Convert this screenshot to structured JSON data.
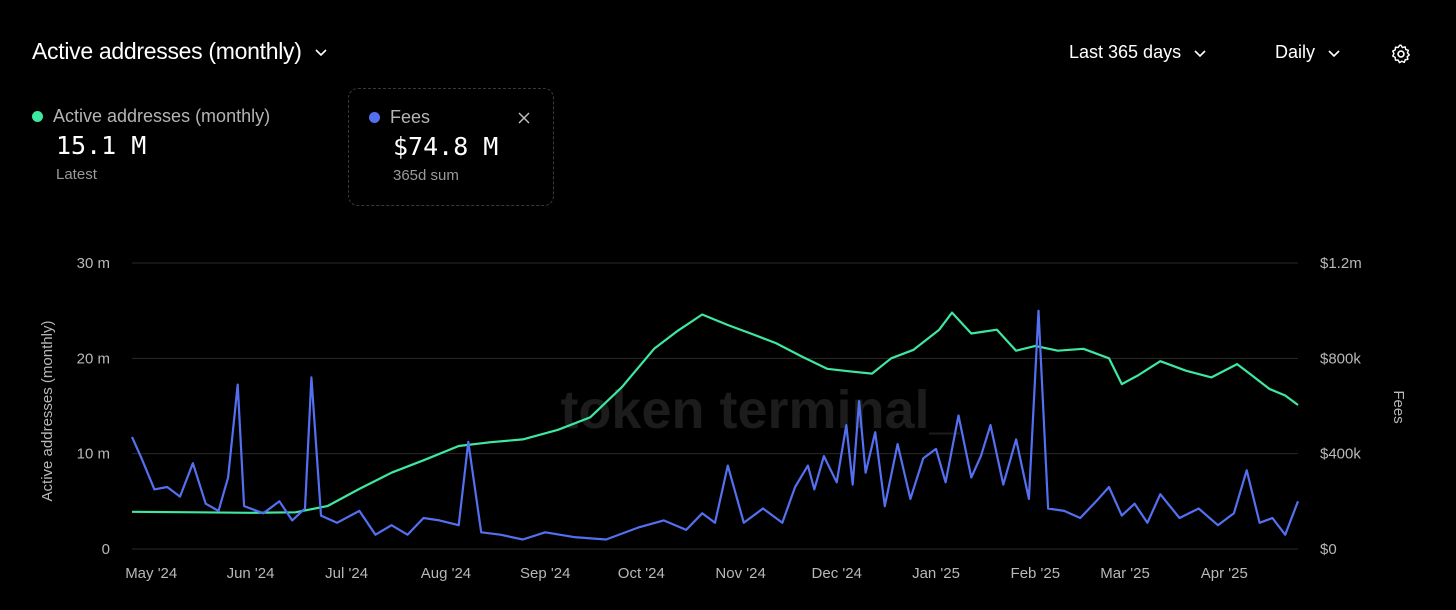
{
  "header": {
    "title": "Active addresses (monthly)",
    "range_label": "Last 365 days",
    "granularity_label": "Daily"
  },
  "metrics": [
    {
      "label": "Active addresses (monthly)",
      "value": "15.1 M",
      "sub": "Latest",
      "color": "#3ee8a0"
    },
    {
      "label": "Fees",
      "value": "$74.8 M",
      "sub": "365d sum",
      "color": "#5470f0"
    }
  ],
  "watermark": "token terminal_",
  "chart_data": {
    "type": "line",
    "x_ticks": [
      "May '24",
      "Jun '24",
      "Jul '24",
      "Aug '24",
      "Sep '24",
      "Oct '24",
      "Nov '24",
      "Dec '24",
      "Jan '25",
      "Feb '25",
      "Mar '25",
      "Apr '25"
    ],
    "x_range": [
      "2024-04-25",
      "2025-04-24"
    ],
    "y_left": {
      "label": "Active addresses (monthly)",
      "ticks": [
        "0",
        "10 m",
        "20 m",
        "30 m"
      ],
      "range": [
        0,
        30000000
      ]
    },
    "y_right": {
      "label": "Fees",
      "ticks": [
        "$0",
        "$400k",
        "$800k",
        "$1.2m"
      ],
      "range": [
        0,
        1200000
      ]
    },
    "grid": true,
    "series": [
      {
        "name": "Active addresses (monthly)",
        "axis": "left",
        "color": "#3ee8a0",
        "points": [
          [
            "2024-04-25",
            3.9
          ],
          [
            "2024-05-15",
            3.85
          ],
          [
            "2024-06-01",
            3.8
          ],
          [
            "2024-06-15",
            3.85
          ],
          [
            "2024-06-25",
            4.5
          ],
          [
            "2024-07-05",
            6.3
          ],
          [
            "2024-07-15",
            8.0
          ],
          [
            "2024-07-25",
            9.3
          ],
          [
            "2024-08-05",
            10.8
          ],
          [
            "2024-08-15",
            11.2
          ],
          [
            "2024-08-25",
            11.5
          ],
          [
            "2024-09-05",
            12.5
          ],
          [
            "2024-09-15",
            13.8
          ],
          [
            "2024-09-25",
            17.0
          ],
          [
            "2024-10-05",
            21.0
          ],
          [
            "2024-10-12",
            22.8
          ],
          [
            "2024-10-20",
            24.6
          ],
          [
            "2024-10-28",
            23.5
          ],
          [
            "2024-11-05",
            22.5
          ],
          [
            "2024-11-12",
            21.6
          ],
          [
            "2024-11-20",
            20.2
          ],
          [
            "2024-11-28",
            18.9
          ],
          [
            "2024-12-06",
            18.6
          ],
          [
            "2024-12-12",
            18.4
          ],
          [
            "2024-12-18",
            20.0
          ],
          [
            "2024-12-25",
            20.9
          ],
          [
            "2025-01-02",
            23.0
          ],
          [
            "2025-01-06",
            24.8
          ],
          [
            "2025-01-12",
            22.6
          ],
          [
            "2025-01-20",
            23.0
          ],
          [
            "2025-01-26",
            20.8
          ],
          [
            "2025-02-01",
            21.3
          ],
          [
            "2025-02-08",
            20.8
          ],
          [
            "2025-02-16",
            21.0
          ],
          [
            "2025-02-24",
            20.0
          ],
          [
            "2025-02-28",
            17.3
          ],
          [
            "2025-03-05",
            18.2
          ],
          [
            "2025-03-12",
            19.7
          ],
          [
            "2025-03-20",
            18.7
          ],
          [
            "2025-03-28",
            18.0
          ],
          [
            "2025-04-05",
            19.4
          ],
          [
            "2025-04-10",
            18.1
          ],
          [
            "2025-04-15",
            16.8
          ],
          [
            "2025-04-20",
            16.1
          ],
          [
            "2025-04-24",
            15.1
          ]
        ]
      },
      {
        "name": "Fees",
        "axis": "right",
        "color": "#5470f0",
        "points": [
          [
            "2024-04-25",
            470000
          ],
          [
            "2024-04-28",
            380000
          ],
          [
            "2024-05-02",
            250000
          ],
          [
            "2024-05-06",
            260000
          ],
          [
            "2024-05-10",
            220000
          ],
          [
            "2024-05-14",
            360000
          ],
          [
            "2024-05-18",
            190000
          ],
          [
            "2024-05-22",
            160000
          ],
          [
            "2024-05-25",
            300000
          ],
          [
            "2024-05-28",
            690000
          ],
          [
            "2024-05-30",
            180000
          ],
          [
            "2024-06-05",
            150000
          ],
          [
            "2024-06-10",
            200000
          ],
          [
            "2024-06-14",
            120000
          ],
          [
            "2024-06-18",
            170000
          ],
          [
            "2024-06-20",
            720000
          ],
          [
            "2024-06-23",
            140000
          ],
          [
            "2024-06-28",
            110000
          ],
          [
            "2024-07-05",
            160000
          ],
          [
            "2024-07-10",
            60000
          ],
          [
            "2024-07-15",
            100000
          ],
          [
            "2024-07-20",
            60000
          ],
          [
            "2024-07-25",
            130000
          ],
          [
            "2024-07-30",
            120000
          ],
          [
            "2024-08-05",
            100000
          ],
          [
            "2024-08-08",
            450000
          ],
          [
            "2024-08-12",
            70000
          ],
          [
            "2024-08-18",
            60000
          ],
          [
            "2024-08-25",
            40000
          ],
          [
            "2024-09-01",
            70000
          ],
          [
            "2024-09-10",
            50000
          ],
          [
            "2024-09-20",
            40000
          ],
          [
            "2024-09-30",
            90000
          ],
          [
            "2024-10-08",
            120000
          ],
          [
            "2024-10-15",
            80000
          ],
          [
            "2024-10-20",
            150000
          ],
          [
            "2024-10-24",
            110000
          ],
          [
            "2024-10-28",
            350000
          ],
          [
            "2024-11-02",
            110000
          ],
          [
            "2024-11-08",
            170000
          ],
          [
            "2024-11-14",
            110000
          ],
          [
            "2024-11-18",
            260000
          ],
          [
            "2024-11-22",
            350000
          ],
          [
            "2024-11-24",
            250000
          ],
          [
            "2024-11-27",
            390000
          ],
          [
            "2024-12-01",
            280000
          ],
          [
            "2024-12-04",
            520000
          ],
          [
            "2024-12-06",
            270000
          ],
          [
            "2024-12-08",
            620000
          ],
          [
            "2024-12-10",
            320000
          ],
          [
            "2024-12-13",
            490000
          ],
          [
            "2024-12-16",
            180000
          ],
          [
            "2024-12-20",
            440000
          ],
          [
            "2024-12-24",
            210000
          ],
          [
            "2024-12-28",
            380000
          ],
          [
            "2025-01-01",
            420000
          ],
          [
            "2025-01-04",
            280000
          ],
          [
            "2025-01-08",
            560000
          ],
          [
            "2025-01-12",
            300000
          ],
          [
            "2025-01-15",
            390000
          ],
          [
            "2025-01-18",
            520000
          ],
          [
            "2025-01-22",
            270000
          ],
          [
            "2025-01-26",
            460000
          ],
          [
            "2025-01-30",
            210000
          ],
          [
            "2025-02-02",
            1000000
          ],
          [
            "2025-02-05",
            170000
          ],
          [
            "2025-02-10",
            160000
          ],
          [
            "2025-02-15",
            130000
          ],
          [
            "2025-02-20",
            200000
          ],
          [
            "2025-02-24",
            260000
          ],
          [
            "2025-02-28",
            140000
          ],
          [
            "2025-03-04",
            190000
          ],
          [
            "2025-03-08",
            110000
          ],
          [
            "2025-03-12",
            230000
          ],
          [
            "2025-03-18",
            130000
          ],
          [
            "2025-03-24",
            170000
          ],
          [
            "2025-03-30",
            100000
          ],
          [
            "2025-04-04",
            150000
          ],
          [
            "2025-04-08",
            330000
          ],
          [
            "2025-04-12",
            110000
          ],
          [
            "2025-04-16",
            130000
          ],
          [
            "2025-04-20",
            60000
          ],
          [
            "2025-04-24",
            200000
          ]
        ]
      }
    ]
  }
}
